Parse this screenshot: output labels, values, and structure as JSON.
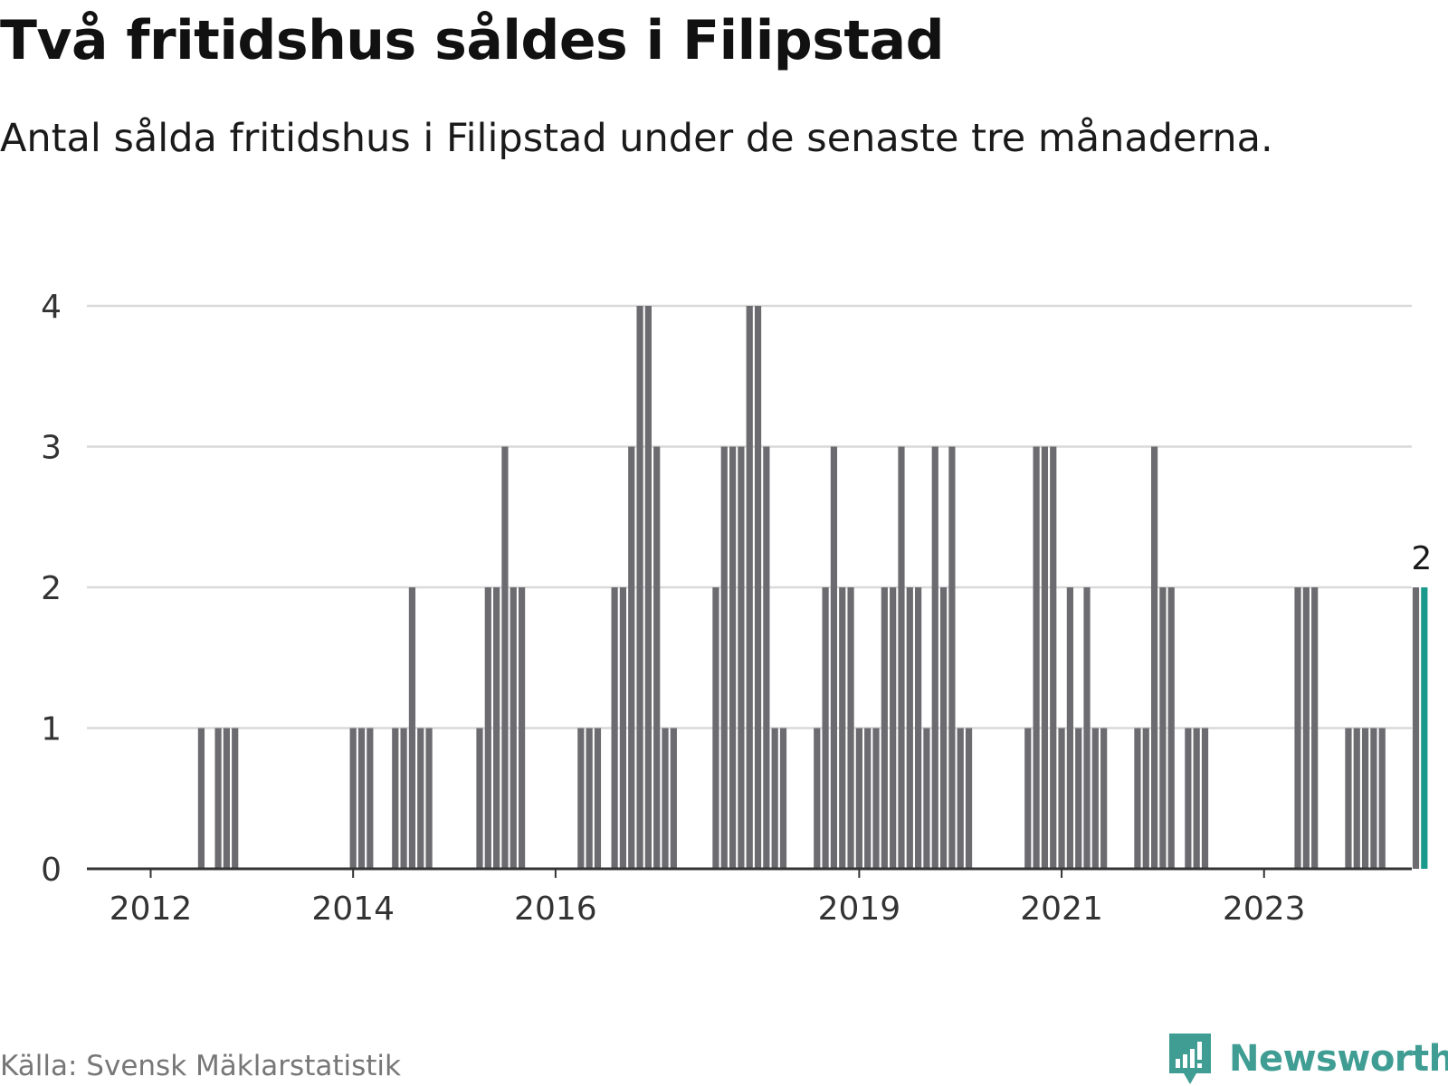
{
  "title": "Två fritidshus såldes i Filipstad",
  "subtitle": "Antal sålda fritidshus i Filipstad under de senaste tre månaderna.",
  "source": "Källa: Svensk Mäklarstatistik",
  "brand": "Newsworthy",
  "colors": {
    "bar": "#6b6b70",
    "highlight": "#1a9a8c",
    "grid": "#d9d9d9",
    "axis": "#333333",
    "brand": "#3f9d93"
  },
  "chart_data": {
    "type": "bar",
    "x_start": "2012-01",
    "interval": "month",
    "y_ticks": [
      "0",
      "1",
      "2",
      "3",
      "4"
    ],
    "x_tick_labels": [
      {
        "label": "2012",
        "month_index": 0
      },
      {
        "label": "2014",
        "month_index": 24
      },
      {
        "label": "2016",
        "month_index": 48
      },
      {
        "label": "2019",
        "month_index": 84
      },
      {
        "label": "2021",
        "month_index": 108
      },
      {
        "label": "2023",
        "month_index": 132
      }
    ],
    "values": [
      0,
      0,
      0,
      0,
      0,
      0,
      1,
      0,
      1,
      1,
      1,
      0,
      0,
      0,
      0,
      0,
      0,
      0,
      0,
      0,
      0,
      0,
      0,
      0,
      1,
      1,
      1,
      0,
      0,
      1,
      1,
      2,
      1,
      1,
      0,
      0,
      0,
      0,
      0,
      1,
      2,
      2,
      3,
      2,
      2,
      0,
      0,
      0,
      0,
      0,
      0,
      1,
      1,
      1,
      0,
      2,
      2,
      3,
      4,
      4,
      3,
      1,
      1,
      0,
      0,
      0,
      0,
      2,
      3,
      3,
      3,
      4,
      4,
      3,
      1,
      1,
      0,
      0,
      0,
      1,
      2,
      3,
      2,
      2,
      1,
      1,
      1,
      2,
      2,
      3,
      2,
      2,
      1,
      3,
      2,
      3,
      1,
      1,
      0,
      0,
      0,
      0,
      0,
      0,
      1,
      3,
      3,
      3,
      1,
      2,
      1,
      2,
      1,
      1,
      0,
      0,
      0,
      1,
      1,
      3,
      2,
      2,
      0,
      1,
      1,
      1,
      0,
      0,
      0,
      0,
      0,
      0,
      0,
      0,
      0,
      0,
      2,
      2,
      2,
      0,
      0,
      0,
      1,
      1,
      1,
      1,
      1,
      0,
      0,
      0,
      2,
      2
    ],
    "highlight_label": "2",
    "ylim": [
      0,
      4
    ]
  }
}
